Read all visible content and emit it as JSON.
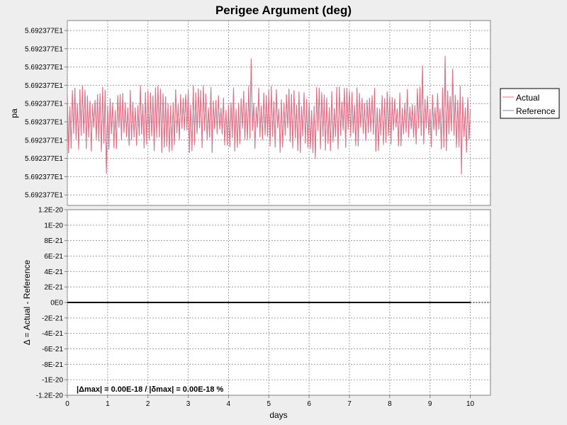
{
  "chart_data": {
    "type": "line",
    "title": "Perigee Argument (deg)",
    "xlabel": "days",
    "xlim": [
      0,
      10.5
    ],
    "x_ticks": [
      "0",
      "1",
      "2",
      "3",
      "4",
      "5",
      "6",
      "7",
      "8",
      "9",
      "10"
    ],
    "legend": {
      "placement": "right",
      "entries": [
        {
          "name": "Actual",
          "color": "#ff6b6b"
        },
        {
          "name": "Reference",
          "color": "#8080e0"
        }
      ]
    },
    "top_panel": {
      "ylabel": "pa",
      "y_ticks": [
        "5.692377E1",
        "5.692377E1",
        "5.692377E1",
        "5.692377E1",
        "5.692377E1",
        "5.692377E1",
        "5.692377E1",
        "5.692377E1",
        "5.692377E1",
        "5.692377E1"
      ],
      "series": [
        {
          "name": "Actual",
          "color": "#ff6b6b"
        },
        {
          "name": "Reference",
          "color": "#8080e0"
        }
      ],
      "x_range": [
        0,
        10
      ],
      "samples": 320
    },
    "bottom_panel": {
      "ylabel": "Δ = Actual - Reference",
      "ylim": [
        -1.2e-20,
        1.2e-20
      ],
      "y_ticks": [
        "1.2E-20",
        "1E-20",
        "8E-21",
        "6E-21",
        "4E-21",
        "2E-21",
        "0E0",
        "-2E-21",
        "-4E-21",
        "-6E-21",
        "-8E-21",
        "-1E-20",
        "-1.2E-20"
      ],
      "y_tick_values": [
        1.2e-20,
        1e-20,
        8e-21,
        6e-21,
        4e-21,
        2e-21,
        0,
        -2e-21,
        -4e-21,
        -6e-21,
        -8e-21,
        -1e-20,
        -1.2e-20
      ],
      "difference": {
        "x": [
          0,
          10
        ],
        "y": [
          0,
          0
        ]
      },
      "stats_text": "|Δmax| = 0.00E-18       /       |δmax| = 0.00E-18 %"
    }
  }
}
